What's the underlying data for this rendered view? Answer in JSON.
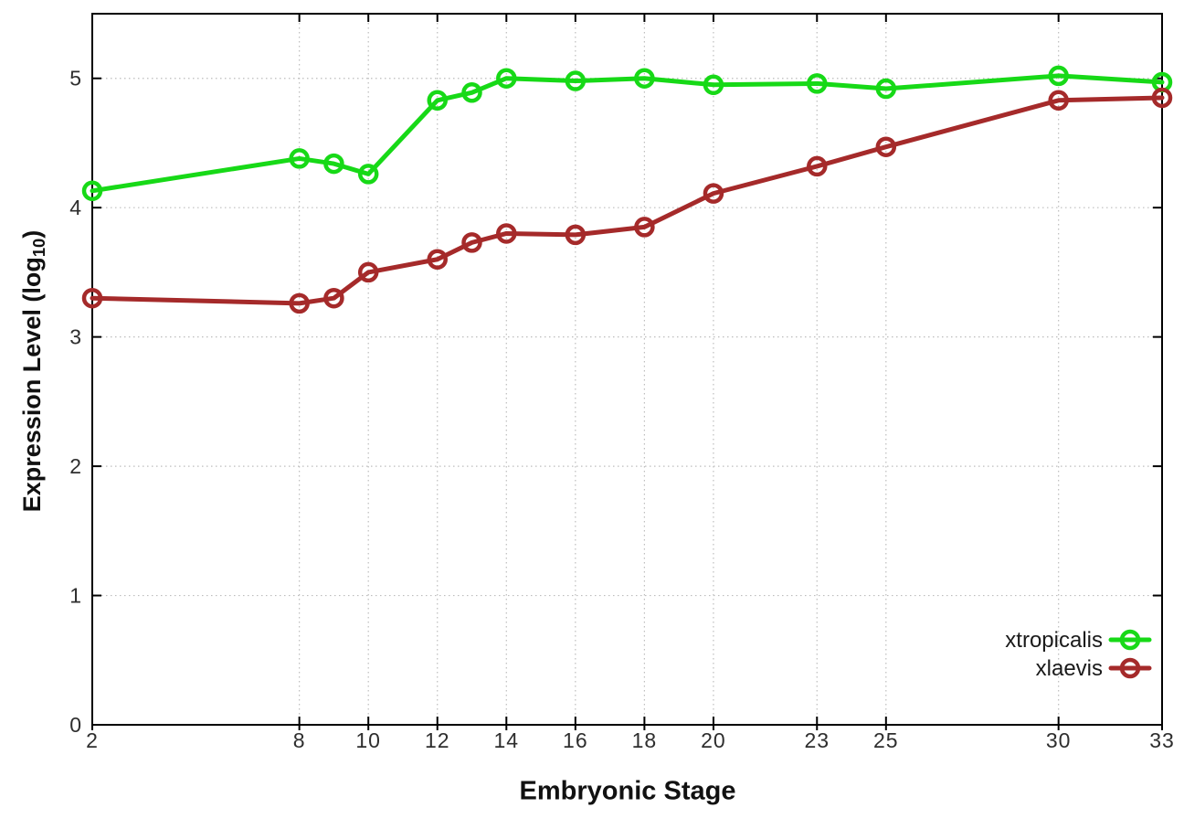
{
  "figure": {
    "background": "#ffffff",
    "xlabel": "Embryonic Stage",
    "ylabel_prefix": "Expression Level (log",
    "ylabel_sub": "10",
    "ylabel_suffix": ")"
  },
  "chart_data": {
    "type": "line",
    "title": "",
    "xlabel": "Embryonic Stage",
    "ylabel": "Expression Level (log10)",
    "x": [
      2,
      8,
      9,
      10,
      12,
      13,
      14,
      16,
      18,
      20,
      23,
      25,
      30,
      33
    ],
    "series": [
      {
        "name": "xtropicalis",
        "color": "#17d917",
        "values": [
          4.13,
          4.38,
          4.34,
          4.26,
          4.83,
          4.89,
          5.0,
          4.98,
          5.0,
          4.95,
          4.96,
          4.92,
          5.02,
          4.97
        ]
      },
      {
        "name": "xlaevis",
        "color": "#a52a2a",
        "values": [
          3.3,
          3.26,
          3.3,
          3.5,
          3.6,
          3.73,
          3.8,
          3.79,
          3.85,
          4.11,
          4.32,
          4.47,
          4.83,
          4.85
        ]
      }
    ],
    "xlim": [
      2,
      33
    ],
    "ylim": [
      0,
      5.5
    ],
    "xticks": [
      2,
      8,
      10,
      12,
      14,
      16,
      18,
      20,
      23,
      25,
      30,
      33
    ],
    "yticks": [
      0,
      1,
      2,
      3,
      4,
      5
    ],
    "grid": true,
    "grid_color": "#bdbdbd",
    "border_color": "#000000",
    "legend_position": "bottom-right",
    "marker": "open-circle"
  }
}
